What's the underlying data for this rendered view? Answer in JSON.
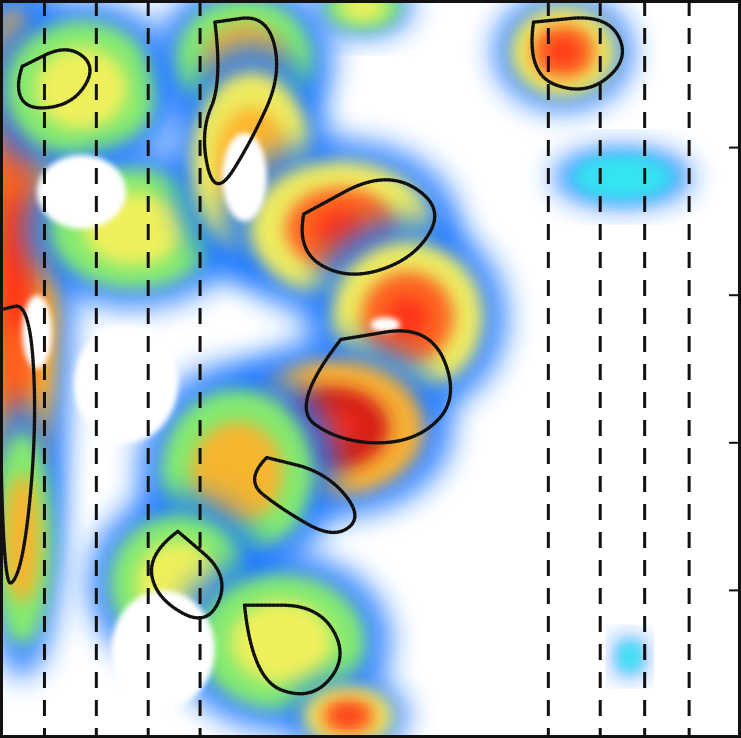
{
  "chart_data": {
    "type": "heatmap",
    "title": "",
    "xlabel": "",
    "ylabel": "",
    "colormap": [
      "#0b5bd8",
      "#2d9bff",
      "#34e5f2",
      "#88ef6a",
      "#f8f15a",
      "#ffb12c",
      "#ff5a1a",
      "#d41212"
    ],
    "vertical_dashed_lines_x": [
      0.06,
      0.13,
      0.2,
      0.27,
      0.74,
      0.81,
      0.87,
      0.93
    ],
    "right_axis_tick_fractions": [
      0.2,
      0.4,
      0.6,
      0.8
    ],
    "fields": [
      {
        "name": "left-column-a",
        "cx": 0.02,
        "cy": 0.36,
        "rx": 0.06,
        "ry": 0.34,
        "value": 0.92
      },
      {
        "name": "left-column-b",
        "cx": 0.03,
        "cy": 0.73,
        "rx": 0.04,
        "ry": 0.14,
        "value": 0.7
      },
      {
        "name": "top-left-loop",
        "cx": 0.11,
        "cy": 0.12,
        "rx": 0.1,
        "ry": 0.09,
        "value": 0.55
      },
      {
        "name": "top-left-curl",
        "cx": 0.18,
        "cy": 0.31,
        "rx": 0.11,
        "ry": 0.08,
        "value": 0.62
      },
      {
        "name": "upper-middle-band",
        "cx": 0.33,
        "cy": 0.08,
        "rx": 0.09,
        "ry": 0.08,
        "value": 0.68
      },
      {
        "name": "upper-middle-arc",
        "cx": 0.34,
        "cy": 0.22,
        "rx": 0.08,
        "ry": 0.12,
        "value": 0.74
      },
      {
        "name": "middle-eddy-1",
        "cx": 0.46,
        "cy": 0.31,
        "rx": 0.12,
        "ry": 0.09,
        "value": 0.83
      },
      {
        "name": "middle-eddy-2",
        "cx": 0.55,
        "cy": 0.43,
        "rx": 0.1,
        "ry": 0.1,
        "value": 0.86
      },
      {
        "name": "center-hook",
        "cx": 0.45,
        "cy": 0.58,
        "rx": 0.12,
        "ry": 0.09,
        "value": 0.94
      },
      {
        "name": "center-lower",
        "cx": 0.32,
        "cy": 0.64,
        "rx": 0.1,
        "ry": 0.11,
        "value": 0.66
      },
      {
        "name": "lower-left-arm",
        "cx": 0.24,
        "cy": 0.79,
        "rx": 0.09,
        "ry": 0.09,
        "value": 0.58
      },
      {
        "name": "lower-center",
        "cx": 0.38,
        "cy": 0.87,
        "rx": 0.11,
        "ry": 0.09,
        "value": 0.64
      },
      {
        "name": "bottom-center",
        "cx": 0.47,
        "cy": 0.97,
        "rx": 0.06,
        "ry": 0.04,
        "value": 0.82
      },
      {
        "name": "top-right-blob",
        "cx": 0.76,
        "cy": 0.07,
        "rx": 0.07,
        "ry": 0.06,
        "value": 0.88
      },
      {
        "name": "right-streak",
        "cx": 0.84,
        "cy": 0.24,
        "rx": 0.07,
        "ry": 0.03,
        "value": 0.35
      },
      {
        "name": "small-right-drop",
        "cx": 0.85,
        "cy": 0.89,
        "rx": 0.015,
        "ry": 0.02,
        "value": 0.24
      },
      {
        "name": "top-edge-right",
        "cx": 0.49,
        "cy": 0.01,
        "rx": 0.05,
        "ry": 0.03,
        "value": 0.52
      }
    ],
    "holes": [
      {
        "name": "white-gap-1",
        "cx": 0.11,
        "cy": 0.26,
        "rx": 0.06,
        "ry": 0.05
      },
      {
        "name": "white-gap-2",
        "cx": 0.33,
        "cy": 0.24,
        "rx": 0.03,
        "ry": 0.06
      },
      {
        "name": "white-gap-3",
        "cx": 0.17,
        "cy": 0.52,
        "rx": 0.07,
        "ry": 0.08
      },
      {
        "name": "white-gap-4",
        "cx": 0.05,
        "cy": 0.45,
        "rx": 0.02,
        "ry": 0.05
      },
      {
        "name": "white-gap-5",
        "cx": 0.52,
        "cy": 0.44,
        "rx": 0.02,
        "ry": 0.01
      },
      {
        "name": "white-gap-6",
        "cx": 0.22,
        "cy": 0.88,
        "rx": 0.07,
        "ry": 0.08
      }
    ],
    "contours": [
      {
        "name": "contour-1",
        "points": [
          [
            0.03,
            0.09
          ],
          [
            0.09,
            0.06
          ],
          [
            0.13,
            0.09
          ],
          [
            0.1,
            0.14
          ],
          [
            0.04,
            0.15
          ],
          [
            0.02,
            0.12
          ]
        ]
      },
      {
        "name": "contour-2",
        "points": [
          [
            0.29,
            0.03
          ],
          [
            0.36,
            0.02
          ],
          [
            0.38,
            0.1
          ],
          [
            0.34,
            0.19
          ],
          [
            0.29,
            0.27
          ],
          [
            0.27,
            0.18
          ],
          [
            0.3,
            0.11
          ]
        ]
      },
      {
        "name": "contour-3",
        "points": [
          [
            0.41,
            0.29
          ],
          [
            0.52,
            0.23
          ],
          [
            0.6,
            0.28
          ],
          [
            0.56,
            0.35
          ],
          [
            0.47,
            0.38
          ],
          [
            0.4,
            0.34
          ]
        ]
      },
      {
        "name": "contour-4",
        "points": [
          [
            0.46,
            0.46
          ],
          [
            0.58,
            0.44
          ],
          [
            0.62,
            0.54
          ],
          [
            0.56,
            0.6
          ],
          [
            0.46,
            0.6
          ],
          [
            0.39,
            0.55
          ]
        ]
      },
      {
        "name": "contour-5",
        "points": [
          [
            0.36,
            0.62
          ],
          [
            0.44,
            0.64
          ],
          [
            0.49,
            0.7
          ],
          [
            0.45,
            0.73
          ],
          [
            0.38,
            0.69
          ],
          [
            0.33,
            0.65
          ]
        ]
      },
      {
        "name": "contour-6",
        "points": [
          [
            0.24,
            0.72
          ],
          [
            0.31,
            0.78
          ],
          [
            0.28,
            0.85
          ],
          [
            0.21,
            0.81
          ],
          [
            0.2,
            0.75
          ]
        ]
      },
      {
        "name": "contour-7",
        "points": [
          [
            0.33,
            0.82
          ],
          [
            0.43,
            0.82
          ],
          [
            0.47,
            0.89
          ],
          [
            0.42,
            0.95
          ],
          [
            0.34,
            0.92
          ]
        ]
      },
      {
        "name": "contour-8",
        "points": [
          [
            0.72,
            0.03
          ],
          [
            0.82,
            0.02
          ],
          [
            0.85,
            0.08
          ],
          [
            0.79,
            0.13
          ],
          [
            0.71,
            0.1
          ]
        ]
      },
      {
        "name": "contour-9",
        "points": [
          [
            0.0,
            0.42
          ],
          [
            0.04,
            0.41
          ],
          [
            0.05,
            0.58
          ],
          [
            0.03,
            0.78
          ],
          [
            0.0,
            0.8
          ]
        ]
      }
    ]
  }
}
